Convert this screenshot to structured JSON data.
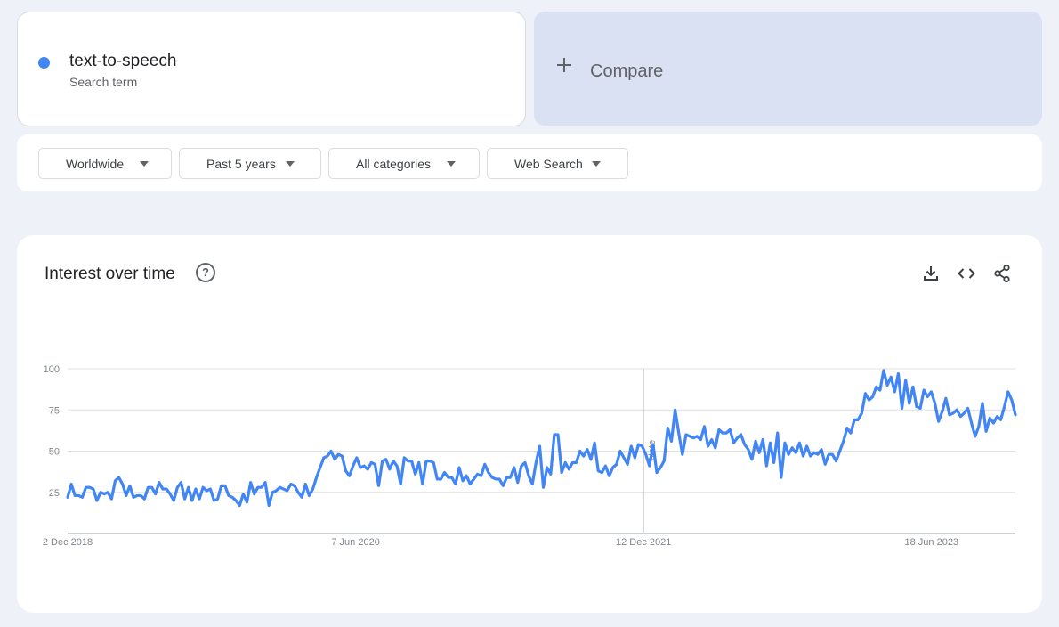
{
  "term": {
    "name": "text-to-speech",
    "subtitle": "Search term",
    "color": "#4285f4"
  },
  "compare": {
    "label": "Compare"
  },
  "filters": [
    {
      "label": "Worldwide"
    },
    {
      "label": "Past 5 years"
    },
    {
      "label": "All categories"
    },
    {
      "label": "Web Search"
    }
  ],
  "panel": {
    "title": "Interest over time",
    "help_icon": "?",
    "tools": [
      "download-icon",
      "embed-code-icon",
      "share-icon"
    ]
  },
  "chart_data": {
    "type": "line",
    "title": "",
    "xlabel": "",
    "ylabel": "",
    "ylim": [
      0,
      100
    ],
    "yticks": [
      25,
      50,
      75,
      100
    ],
    "grid": true,
    "legend": "none",
    "note_label": "Note",
    "note_at": "12 Dec 2021",
    "x_ticks": [
      "2 Dec 2018",
      "7 Jun 2020",
      "12 Dec 2021",
      "18 Jun 2023"
    ],
    "x_start": "2 Dec 2018",
    "x_end": "26 Nov 2023",
    "series": [
      {
        "color": "#4285f4",
        "values": [
          22,
          30,
          23,
          23,
          22,
          28,
          28,
          27,
          20,
          25,
          24,
          25,
          21,
          32,
          34,
          30,
          23,
          29,
          22,
          23,
          23,
          21,
          28,
          28,
          24,
          31,
          27,
          27,
          24,
          20,
          28,
          31,
          21,
          28,
          20,
          27,
          21,
          28,
          26,
          27,
          20,
          21,
          29,
          29,
          23,
          22,
          20,
          17,
          24,
          19,
          31,
          24,
          28,
          28,
          31,
          17,
          25,
          26,
          28,
          27,
          26,
          30,
          29,
          25,
          22,
          30,
          23,
          27,
          34,
          40,
          46,
          47,
          50,
          45,
          48,
          47,
          38,
          35,
          41,
          46,
          40,
          41,
          39,
          43,
          42,
          29,
          44,
          45,
          39,
          44,
          41,
          30,
          46,
          44,
          44,
          36,
          43,
          30,
          44,
          44,
          43,
          33,
          33,
          37,
          34,
          34,
          30,
          40,
          32,
          35,
          30,
          33,
          36,
          35,
          42,
          37,
          34,
          33,
          33,
          29,
          34,
          34,
          40,
          31,
          41,
          43,
          35,
          30,
          43,
          53,
          28,
          40,
          36,
          60,
          60,
          37,
          43,
          39,
          43,
          43,
          50,
          47,
          51,
          45,
          55,
          38,
          37,
          41,
          35,
          40,
          42,
          50,
          46,
          42,
          53,
          46,
          54,
          53,
          48,
          41,
          54,
          37,
          40,
          44,
          64,
          56,
          75,
          61,
          48,
          60,
          59,
          58,
          59,
          57,
          65,
          53,
          57,
          52,
          63,
          61,
          61,
          63,
          55,
          58,
          60,
          54,
          51,
          45,
          56,
          49,
          57,
          41,
          55,
          43,
          61,
          34,
          55,
          48,
          52,
          49,
          55,
          47,
          53,
          47,
          49,
          48,
          51,
          42,
          48,
          48,
          44,
          50,
          56,
          64,
          61,
          69,
          69,
          73,
          85,
          81,
          83,
          89,
          87,
          99,
          90,
          95,
          86,
          97,
          76,
          93,
          79,
          89,
          77,
          76,
          87,
          83,
          86,
          79,
          68,
          74,
          82,
          72,
          73,
          75,
          71,
          73,
          76,
          67,
          59,
          65,
          79,
          62,
          70,
          67,
          71,
          69,
          77,
          86,
          81,
          72
        ]
      }
    ]
  }
}
